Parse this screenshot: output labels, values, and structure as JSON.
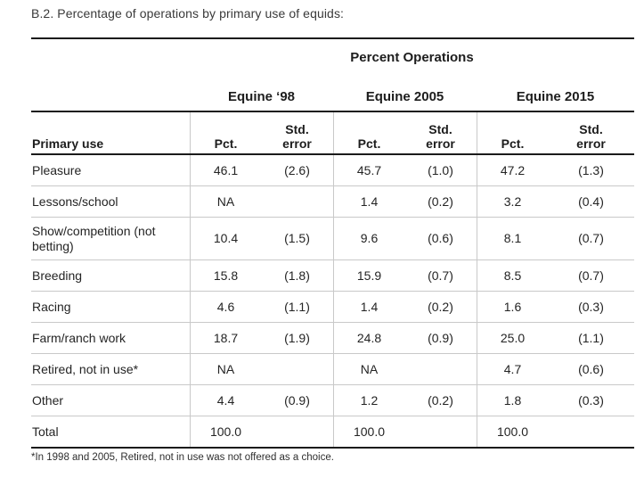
{
  "page": {
    "title": "B.2. Percentage of operations by primary use of equids:",
    "footnote": "*In 1998 and 2005, Retired, not in use was not offered as a choice."
  },
  "table": {
    "spanner": "Percent Operations",
    "groups": [
      "Equine ‘98",
      "Equine 2005",
      "Equine 2015"
    ],
    "col_headers": {
      "primary_use": "Primary use",
      "pct": "Pct.",
      "std_error_line1": "Std.",
      "std_error_line2": "error"
    },
    "rows": [
      {
        "label": "Pleasure",
        "cells": [
          {
            "pct": "46.1",
            "se": "(2.6)"
          },
          {
            "pct": "45.7",
            "se": "(1.0)"
          },
          {
            "pct": "47.2",
            "se": "(1.3)"
          }
        ]
      },
      {
        "label": "Lessons/school",
        "cells": [
          {
            "pct": "NA",
            "se": ""
          },
          {
            "pct": "1.4",
            "se": "(0.2)"
          },
          {
            "pct": "3.2",
            "se": "(0.4)"
          }
        ]
      },
      {
        "label": "Show/competition (not betting)",
        "cells": [
          {
            "pct": "10.4",
            "se": "(1.5)"
          },
          {
            "pct": "9.6",
            "se": "(0.6)"
          },
          {
            "pct": "8.1",
            "se": "(0.7)"
          }
        ]
      },
      {
        "label": "Breeding",
        "cells": [
          {
            "pct": "15.8",
            "se": "(1.8)"
          },
          {
            "pct": "15.9",
            "se": "(0.7)"
          },
          {
            "pct": "8.5",
            "se": "(0.7)"
          }
        ]
      },
      {
        "label": "Racing",
        "cells": [
          {
            "pct": "4.6",
            "se": "(1.1)"
          },
          {
            "pct": "1.4",
            "se": "(0.2)"
          },
          {
            "pct": "1.6",
            "se": "(0.3)"
          }
        ]
      },
      {
        "label": "Farm/ranch work",
        "cells": [
          {
            "pct": "18.7",
            "se": "(1.9)"
          },
          {
            "pct": "24.8",
            "se": "(0.9)"
          },
          {
            "pct": "25.0",
            "se": "(1.1)"
          }
        ]
      },
      {
        "label": "Retired, not in use*",
        "cells": [
          {
            "pct": "NA",
            "se": ""
          },
          {
            "pct": "NA",
            "se": ""
          },
          {
            "pct": "4.7",
            "se": "(0.6)"
          }
        ]
      },
      {
        "label": "Other",
        "cells": [
          {
            "pct": "4.4",
            "se": "(0.9)"
          },
          {
            "pct": "1.2",
            "se": "(0.2)"
          },
          {
            "pct": "1.8",
            "se": "(0.3)"
          }
        ]
      },
      {
        "label": "Total",
        "cells": [
          {
            "pct": "100.0",
            "se": ""
          },
          {
            "pct": "100.0",
            "se": ""
          },
          {
            "pct": "100.0",
            "se": ""
          }
        ]
      }
    ]
  },
  "colors": {
    "background": "#ffffff",
    "text": "#242424",
    "title_text": "#3a3a3a",
    "thick_rule": "#1b1b1b",
    "light_line": "#c9c9c9"
  }
}
